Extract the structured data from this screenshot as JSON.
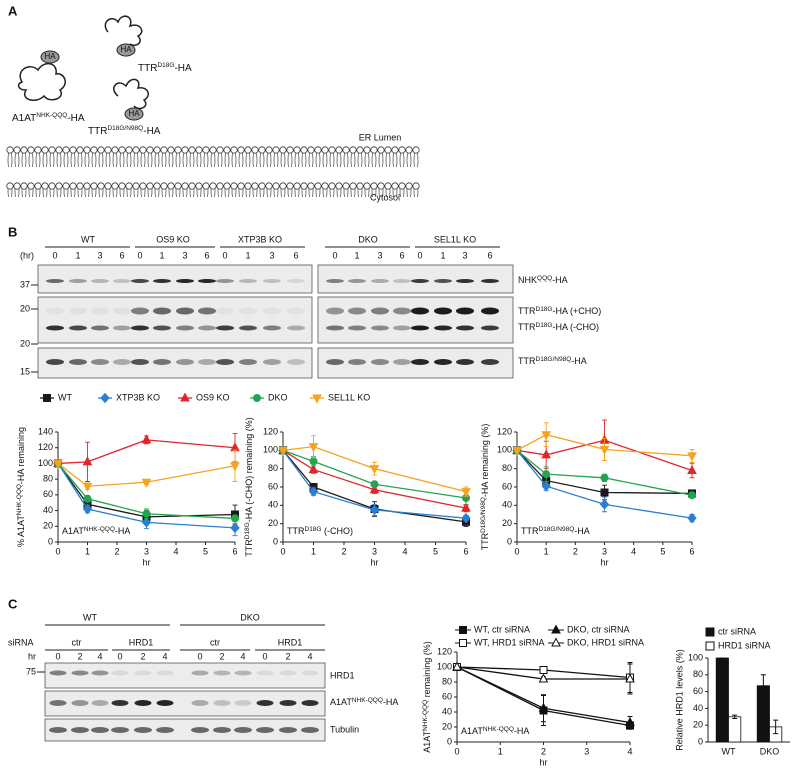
{
  "panel_labels": [
    "A",
    "B",
    "C"
  ],
  "panel_a": {
    "tag": "HA",
    "proteins": [
      [
        "A1AT",
        "NHK-QQQ",
        "-HA"
      ],
      [
        "TTR",
        "D18G",
        "-HA"
      ],
      [
        "TTR",
        "D18G/N98Q",
        "-HA"
      ]
    ],
    "lumen": "ER Lumen",
    "cytosol": "Cytosol"
  },
  "panel_b": {
    "groups": [
      "WT",
      "OS9 KO",
      "XTP3B KO",
      "DKO",
      "SEL1L KO"
    ],
    "hr": "(hr)",
    "times": [
      "0",
      "1",
      "3",
      "6"
    ],
    "mw": [
      "37",
      "20",
      "20",
      "15"
    ],
    "rows": [
      [
        "NHK",
        "QQQ",
        "-HA"
      ],
      [
        "TTR",
        "D18G",
        "-HA (+CHO)"
      ],
      [
        "TTR",
        "D18G",
        "-HA (-CHO)"
      ],
      [
        "TTR",
        "D18G/N98Q",
        "-HA"
      ]
    ]
  },
  "panel_c": {
    "genotypes": [
      "WT",
      "DKO"
    ],
    "sirna": "siRNA",
    "treatments": [
      "ctr",
      "HRD1"
    ],
    "hr": "hr",
    "times": [
      "0",
      "2",
      "4"
    ],
    "mw": "75",
    "rows": [
      "HRD1",
      [
        "A1AT",
        "NHK-QQQ",
        "-HA"
      ],
      "Tubulin"
    ]
  },
  "chart_data": [
    {
      "type": "line",
      "ylabel": [
        "% A1AT",
        "NHK-QQQ",
        "-HA remaining"
      ],
      "label": [
        "A1AT",
        "NHK-QQQ",
        "-HA"
      ],
      "xlabel": "hr",
      "x": [
        0,
        1,
        3,
        6
      ],
      "xlim": [
        0,
        6
      ],
      "xticks": [
        0,
        1,
        2,
        3,
        4,
        5,
        6
      ],
      "ylim": [
        0,
        140
      ],
      "yticks": [
        0,
        20,
        40,
        60,
        80,
        100,
        120,
        140
      ],
      "series": [
        {
          "name": "WT",
          "color": "#1a1a1a",
          "marker": "square",
          "values": [
            100,
            48,
            32,
            35
          ],
          "errors": [
            0,
            5,
            8,
            12
          ]
        },
        {
          "name": "XTP3B KO",
          "color": "#2a7fd4",
          "marker": "diamond",
          "values": [
            100,
            42,
            25,
            18
          ],
          "errors": [
            0,
            5,
            8,
            10
          ]
        },
        {
          "name": "OS9 KO",
          "color": "#e0262b",
          "marker": "triangle",
          "values": [
            100,
            102,
            130,
            120
          ],
          "errors": [
            0,
            25,
            5,
            18
          ]
        },
        {
          "name": "DKO",
          "color": "#23a550",
          "marker": "circle",
          "values": [
            100,
            55,
            36,
            30
          ],
          "errors": [
            0,
            4,
            6,
            4
          ]
        },
        {
          "name": "SEL1L KO",
          "color": "#f5a320",
          "marker": "triangle-down",
          "values": [
            100,
            71,
            76,
            97
          ],
          "errors": [
            0,
            4,
            3,
            20
          ]
        }
      ]
    },
    {
      "type": "line",
      "ylabel": [
        "TTR",
        "D18G",
        "-HA (-CHO) remaining (%)"
      ],
      "label": [
        "TTR",
        "D18G",
        " (-CHO)"
      ],
      "xlabel": "hr",
      "x": [
        0,
        1,
        3,
        6
      ],
      "xlim": [
        0,
        6
      ],
      "xticks": [
        0,
        1,
        2,
        3,
        4,
        5,
        6
      ],
      "ylim": [
        0,
        120
      ],
      "yticks": [
        0,
        20,
        40,
        60,
        80,
        100,
        120
      ],
      "series": [
        {
          "color": "#1a1a1a",
          "marker": "square",
          "values": [
            100,
            60,
            36,
            22
          ],
          "errors": [
            0,
            3,
            8,
            5
          ]
        },
        {
          "color": "#2a7fd4",
          "marker": "diamond",
          "values": [
            100,
            55,
            35,
            26
          ],
          "errors": [
            0,
            4,
            6,
            3
          ]
        },
        {
          "color": "#e0262b",
          "marker": "triangle",
          "values": [
            100,
            79,
            57,
            37
          ],
          "errors": [
            0,
            4,
            4,
            4
          ]
        },
        {
          "color": "#23a550",
          "marker": "circle",
          "values": [
            100,
            88,
            63,
            48
          ],
          "errors": [
            0,
            5,
            3,
            8
          ]
        },
        {
          "color": "#f5a320",
          "marker": "triangle-down",
          "values": [
            100,
            104,
            80,
            55
          ],
          "errors": [
            0,
            12,
            7,
            5
          ]
        }
      ]
    },
    {
      "type": "line",
      "ylabel": [
        "TTR",
        "D18G/N98Q",
        "-HA remaining (%)"
      ],
      "label": [
        "TTR",
        "D18G/N98Q",
        "-HA"
      ],
      "xlabel": "hr",
      "x": [
        0,
        1,
        3,
        6
      ],
      "xlim": [
        0,
        6
      ],
      "xticks": [
        0,
        1,
        2,
        3,
        4,
        5,
        6
      ],
      "ylim": [
        0,
        120
      ],
      "yticks": [
        0,
        20,
        40,
        60,
        80,
        100,
        120
      ],
      "series": [
        {
          "color": "#1a1a1a",
          "marker": "square",
          "values": [
            100,
            67,
            54,
            53
          ],
          "errors": [
            0,
            5,
            8,
            3
          ]
        },
        {
          "color": "#2a7fd4",
          "marker": "diamond",
          "values": [
            100,
            61,
            41,
            26
          ],
          "errors": [
            0,
            5,
            8,
            4
          ]
        },
        {
          "color": "#e0262b",
          "marker": "triangle",
          "values": [
            100,
            95,
            111,
            78
          ],
          "errors": [
            0,
            15,
            22,
            8
          ]
        },
        {
          "color": "#23a550",
          "marker": "circle",
          "values": [
            100,
            74,
            70,
            51
          ],
          "errors": [
            0,
            8,
            4,
            3
          ]
        },
        {
          "color": "#f5a320",
          "marker": "triangle-down",
          "values": [
            100,
            117,
            101,
            94
          ],
          "errors": [
            0,
            13,
            12,
            7
          ]
        }
      ]
    },
    {
      "type": "line",
      "ylabel": [
        "A1AT",
        "NHK-QQQ",
        " remaining (%)"
      ],
      "label": [
        "A1AT",
        "NHK-QQQ",
        "-HA"
      ],
      "xlabel": "hr",
      "x": [
        0,
        2,
        4
      ],
      "xlim": [
        0,
        4
      ],
      "xticks": [
        0,
        1,
        2,
        3,
        4
      ],
      "ylim": [
        0,
        120
      ],
      "yticks": [
        0,
        20,
        40,
        60,
        80,
        100,
        120
      ],
      "series": [
        {
          "name": "WT, ctr siRNA",
          "color": "#111111",
          "marker": "square",
          "values": [
            100,
            42,
            22
          ],
          "errors": [
            0,
            20,
            5
          ]
        },
        {
          "name": "WT, HRD1 siRNA",
          "color": "#111111",
          "marker": "square-open",
          "values": [
            100,
            96,
            86
          ],
          "errors": [
            0,
            3,
            20
          ]
        },
        {
          "name": "DKO, ctr siRNA",
          "color": "#111111",
          "marker": "triangle",
          "values": [
            100,
            45,
            26
          ],
          "errors": [
            0,
            18,
            8
          ]
        },
        {
          "name": "DKO, HRD1 siRNA",
          "color": "#111111",
          "marker": "triangle-open",
          "values": [
            100,
            84,
            84
          ],
          "errors": [
            0,
            3,
            20
          ]
        }
      ]
    },
    {
      "type": "bar",
      "ylabel": "Relative HRD1 levels (%)",
      "categories": [
        "WT",
        "DKO"
      ],
      "ylim": [
        0,
        100
      ],
      "yticks": [
        0,
        20,
        40,
        60,
        80,
        100
      ],
      "series": [
        {
          "name": "ctr siRNA",
          "color": "#111111",
          "values": [
            100,
            67
          ],
          "errors": [
            0,
            13
          ]
        },
        {
          "name": "HRD1 siRNA",
          "color": "#ffffff",
          "values": [
            30,
            18
          ],
          "errors": [
            2,
            8
          ]
        }
      ]
    }
  ]
}
